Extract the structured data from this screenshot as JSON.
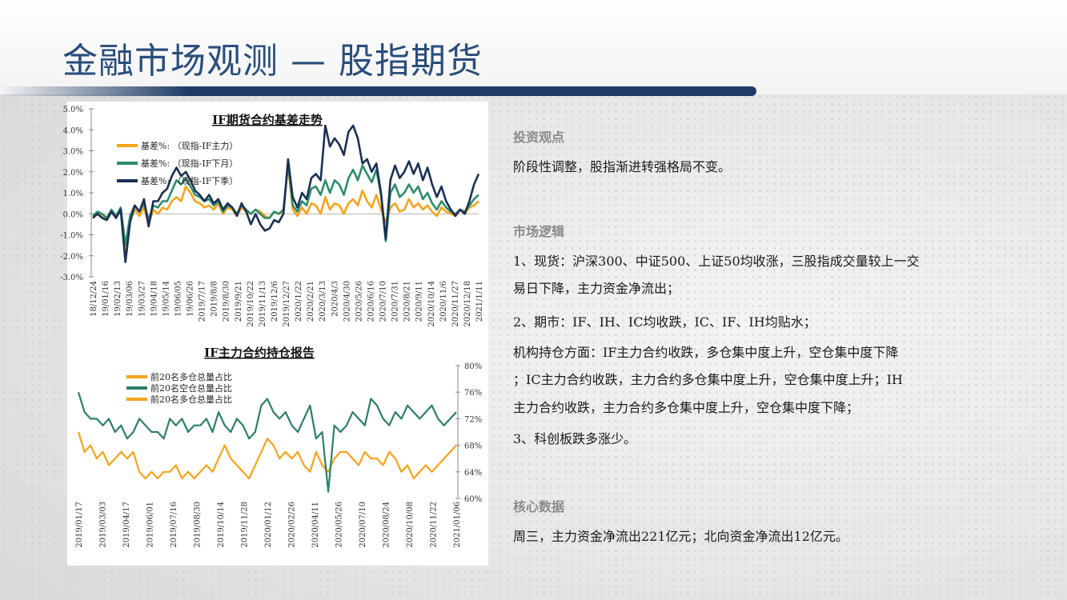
{
  "page_title": "金融市场观测 — 股指期货",
  "sections": {
    "view_title": "投资观点",
    "view_text": "阶段性调整，股指渐进转强格局不变。",
    "logic_title": "市场逻辑",
    "logic_lines": [
      "1、现货：沪深300、中证500、上证50均收涨，三股指成交量较上一交",
      "易日下降，主力资金净流出；",
      "2、期市：IF、IH、IC均收跌，IC、IF、IH均贴水；",
      "机构持仓方面：IF主力合约收跌，多仓集中度上升，空仓集中度下降",
      "；IC主力合约收跌，主力合约多仓集中度上升，空仓集中度上升；IH",
      "主力合约收跌，主力合约多仓集中度上升，空仓集中度下降；",
      "3、科创板跌多涨少。"
    ],
    "core_title": "核心数据",
    "core_text": "周三，主力资金净流出221亿元；北向资金净流出12亿元。"
  },
  "chart_data": [
    {
      "type": "line",
      "title": "IF期货合约基差走势",
      "y_ticks": [
        "5.0%",
        "4.0%",
        "3.0%",
        "2.0%",
        "1.0%",
        "0.0%",
        "-1.0%",
        "-2.0%",
        "-3.0%"
      ],
      "ylim": [
        -3.0,
        5.0
      ],
      "x_ticks": [
        "18/12/24",
        "19/01/16",
        "19/02/13",
        "19/03/06",
        "19/03/27",
        "19/04/18",
        "19/05/14",
        "19/06/05",
        "19/06/26",
        "2019/7/17",
        "2019/8/8",
        "2019/8/30",
        "2019/9/21",
        "2019/10/22",
        "2019/11/13",
        "2019/12/6",
        "2019/12/27",
        "2020/1/22",
        "2020/2/21",
        "2020/3/13",
        "2020/4/3",
        "2020/4/30",
        "2020/5/26",
        "2020/6/16",
        "2020/7/10",
        "2020/7/31",
        "2020/8/21",
        "2020/9/11",
        "2020/10/14",
        "2020/11/6",
        "2020/11/27",
        "2020/12/18",
        "2021/1/11"
      ],
      "legend_position": "top-left",
      "series": [
        {
          "name": "基差%: （现指-IF主力）",
          "color": "#f5a31a",
          "values": [
            -0.2,
            0.0,
            -0.1,
            -0.3,
            0.1,
            -0.2,
            0.2,
            -1.9,
            -0.3,
            0.2,
            -0.1,
            0.3,
            -0.5,
            0.2,
            0.0,
            0.3,
            0.2,
            0.6,
            0.8,
            0.6,
            1.3,
            1.0,
            0.6,
            0.5,
            0.3,
            0.4,
            0.2,
            0.5,
            0.0,
            0.3,
            0.2,
            -0.1,
            0.3,
            0.1,
            0.0,
            0.2,
            0.1,
            -0.1,
            -0.2,
            0.1,
            0.0,
            0.1,
            2.3,
            0.2,
            -0.1,
            0.3,
            0.0,
            0.5,
            0.4,
            0.0,
            0.8,
            0.2,
            0.5,
            0.4,
            0.0,
            0.5,
            0.7,
            0.4,
            1.1,
            0.6,
            0.3,
            0.9,
            0.2,
            -0.4,
            0.3,
            0.5,
            0.1,
            0.2,
            0.7,
            0.3,
            0.5,
            0.2,
            0.4,
            0.1,
            -0.1,
            0.3,
            0.1,
            0.0,
            -0.1,
            0.2,
            0.0,
            0.3,
            0.4,
            0.6
          ]
        },
        {
          "name": "基差%: （现指-IF下月）",
          "color": "#2e8b6e",
          "values": [
            -0.1,
            0.1,
            0.0,
            -0.2,
            0.2,
            -0.1,
            0.3,
            -1.5,
            -0.1,
            0.4,
            0.1,
            0.5,
            -0.3,
            0.4,
            0.3,
            0.6,
            0.6,
            1.1,
            1.6,
            1.4,
            1.7,
            1.3,
            0.9,
            0.8,
            0.6,
            0.7,
            0.4,
            0.6,
            0.1,
            0.4,
            0.3,
            0.0,
            0.4,
            0.2,
            0.0,
            0.2,
            0.0,
            -0.2,
            -0.2,
            0.1,
            0.0,
            0.2,
            2.4,
            0.4,
            0.1,
            0.6,
            0.4,
            1.2,
            1.3,
            0.9,
            1.6,
            1.0,
            1.6,
            1.4,
            0.9,
            1.7,
            2.1,
            1.6,
            2.3,
            1.9,
            1.5,
            2.1,
            0.9,
            -1.3,
            1.0,
            1.4,
            0.8,
            1.0,
            1.4,
            1.0,
            1.3,
            0.7,
            1.0,
            0.5,
            0.2,
            0.6,
            0.3,
            0.1,
            0.0,
            0.2,
            0.1,
            0.4,
            0.7,
            0.9
          ]
        },
        {
          "name": "基差%: （现指-IF下季）",
          "color": "#1b3052",
          "values": [
            -0.2,
            0.0,
            -0.2,
            -0.3,
            0.1,
            -0.2,
            0.2,
            -2.3,
            -0.4,
            0.4,
            0.1,
            0.7,
            -0.6,
            0.6,
            0.6,
            1.0,
            1.2,
            1.8,
            2.2,
            1.8,
            2.0,
            1.6,
            1.1,
            0.9,
            0.6,
            0.9,
            0.5,
            0.7,
            0.2,
            0.5,
            0.3,
            -0.1,
            0.5,
            0.1,
            -0.5,
            0.0,
            -0.5,
            -0.8,
            -0.7,
            -0.3,
            -0.4,
            0.0,
            2.6,
            0.8,
            0.3,
            1.0,
            0.7,
            1.7,
            1.9,
            1.6,
            4.2,
            3.2,
            3.6,
            3.3,
            2.8,
            3.9,
            4.2,
            3.6,
            2.4,
            2.6,
            2.0,
            2.4,
            1.0,
            -1.2,
            1.6,
            2.3,
            1.7,
            2.0,
            2.5,
            1.9,
            2.4,
            1.6,
            2.2,
            1.4,
            0.8,
            1.3,
            0.6,
            0.2,
            -0.1,
            0.2,
            0.0,
            0.6,
            1.4,
            1.9
          ]
        }
      ]
    },
    {
      "type": "line",
      "title": "IF主力合约持仓报告",
      "y_ticks": [
        "80%",
        "76%",
        "72%",
        "68%",
        "64%",
        "60%"
      ],
      "ylim": [
        60,
        80
      ],
      "x_ticks": [
        "2019/01/17",
        "2019/03/03",
        "2019/04/17",
        "2019/06/01",
        "2019/07/16",
        "2019/08/30",
        "2019/10/14",
        "2019/11/28",
        "2020/01/12",
        "2020/02/26",
        "2020/04/11",
        "2020/05/26",
        "2020/07/10",
        "2020/08/24",
        "2020/10/08",
        "2020/11/22",
        "2021/01/06"
      ],
      "legend_position": "top-left",
      "series": [
        {
          "name": "前20名多仓总量占比",
          "color": "#f5a31a",
          "values": [
            70,
            67,
            68,
            66,
            67,
            65,
            66,
            67,
            66,
            67,
            64,
            63,
            64,
            63,
            64,
            64,
            65,
            63,
            64,
            63,
            64,
            65,
            64,
            66,
            68,
            66,
            65,
            64,
            63,
            65,
            67,
            69,
            68,
            66,
            67,
            66,
            67,
            65,
            64,
            67,
            65,
            64,
            66,
            67,
            67,
            66,
            65,
            67,
            66,
            66,
            65,
            67,
            66,
            64,
            65,
            63,
            64,
            65,
            64,
            65,
            66,
            67,
            68
          ]
        },
        {
          "name": "前20名空仓总量占比",
          "color": "#2e7d6b",
          "values": [
            76,
            73,
            72,
            72,
            71,
            72,
            70,
            71,
            69,
            70,
            72,
            71,
            70,
            70,
            69,
            72,
            71,
            72,
            70,
            71,
            71,
            72,
            70,
            73,
            71,
            70,
            72,
            71,
            69,
            70,
            74,
            75,
            73,
            72,
            73,
            71,
            70,
            72,
            74,
            69,
            70,
            61,
            71,
            70,
            71,
            73,
            72,
            71,
            75,
            74,
            72,
            71,
            73,
            72,
            74,
            73,
            72,
            73,
            74,
            72,
            71,
            72,
            73
          ]
        },
        {
          "name": "前20名多仓总量占比",
          "color": "#f5a31a",
          "values": []
        }
      ]
    }
  ]
}
